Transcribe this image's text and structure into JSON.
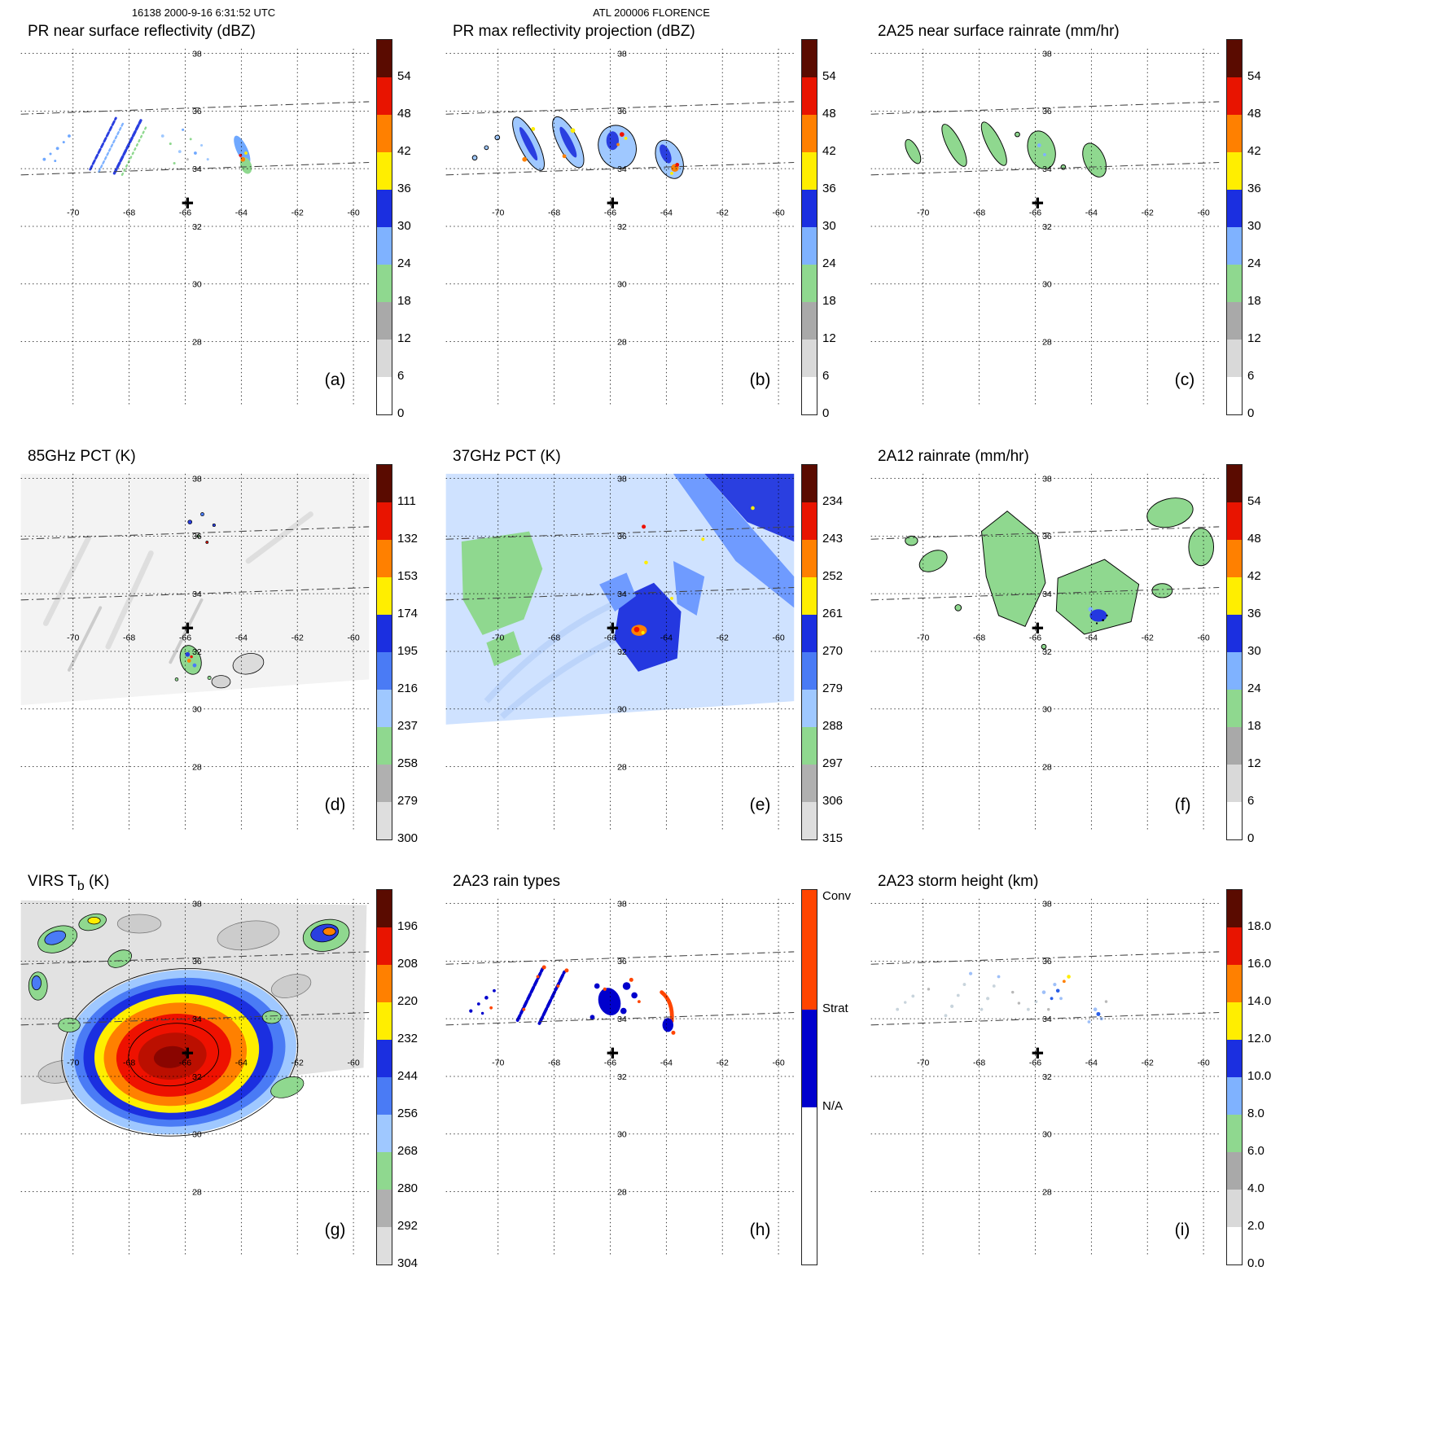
{
  "header": {
    "timestamp": "16138 2000-9-16 6:31:52 UTC",
    "storm_label": "ATL 200006 FLORENCE"
  },
  "axes": {
    "lon_ticks": [
      "-70",
      "-68",
      "-66",
      "-64",
      "-62",
      "-60"
    ],
    "lat_ticks": [
      "38",
      "36",
      "34",
      "32",
      "30",
      "28"
    ]
  },
  "annotations": {
    "storm_marker": {
      "lon": -65.9,
      "lat": 32.9,
      "symbol": "+"
    }
  },
  "panels": {
    "a": {
      "title": "PR near surface reflectivity (dBZ)",
      "letter": "(a)",
      "colorbar": "dbz"
    },
    "b": {
      "title": "PR max reflectivity projection (dBZ)",
      "letter": "(b)",
      "colorbar": "dbz"
    },
    "c": {
      "title": "2A25 near surface rainrate (mm/hr)",
      "letter": "(c)",
      "colorbar": "dbz"
    },
    "d": {
      "title": "85GHz PCT (K)",
      "letter": "(d)",
      "colorbar": "pct85"
    },
    "e": {
      "title": "37GHz PCT (K)",
      "letter": "(e)",
      "colorbar": "pct37"
    },
    "f": {
      "title": "2A12 rainrate (mm/hr)",
      "letter": "(f)",
      "colorbar": "dbz"
    },
    "g": {
      "title": "VIRS T",
      "title_sub": "b",
      "title_suffix": " (K)",
      "letter": "(g)",
      "colorbar": "virs"
    },
    "h": {
      "title": "2A23 rain types",
      "letter": "(h)",
      "colorbar": "raintype"
    },
    "i": {
      "title": "2A23 storm height (km)",
      "letter": "(i)",
      "colorbar": "height"
    }
  },
  "colorbars": {
    "dbz": {
      "cap_color": "#5a0b00",
      "segment_colors_top_down": [
        "#e81400",
        "#ff8000",
        "#ffee00",
        "#1b2fe0",
        "#7fb2ff",
        "#8fd88f",
        "#a9a9a9",
        "#d9d9d9",
        "#ffffff"
      ],
      "ticks_top_down": [
        "54",
        "48",
        "42",
        "36",
        "30",
        "24",
        "18",
        "12",
        "6",
        "0"
      ]
    },
    "pct85": {
      "cap_color": "#5a0b00",
      "segment_colors_top_down": [
        "#e81400",
        "#ff8000",
        "#ffee00",
        "#1b2fe0",
        "#4a7bf5",
        "#9fc8ff",
        "#8fd88f",
        "#b0b0b0",
        "#dedede"
      ],
      "ticks_top_down": [
        "111",
        "132",
        "153",
        "174",
        "195",
        "216",
        "237",
        "258",
        "279",
        "300"
      ]
    },
    "pct37": {
      "cap_color": "#5a0b00",
      "segment_colors_top_down": [
        "#e81400",
        "#ff8000",
        "#ffee00",
        "#1b2fe0",
        "#4a7bf5",
        "#9fc8ff",
        "#8fd88f",
        "#b0b0b0",
        "#dedede"
      ],
      "ticks_top_down": [
        "234",
        "243",
        "252",
        "261",
        "270",
        "279",
        "288",
        "297",
        "306",
        "315"
      ]
    },
    "virs": {
      "cap_color": "#5a0b00",
      "segment_colors_top_down": [
        "#e81400",
        "#ff8000",
        "#ffee00",
        "#1b2fe0",
        "#4a7bf5",
        "#9fc8ff",
        "#8fd88f",
        "#b0b0b0",
        "#dedede"
      ],
      "ticks_top_down": [
        "196",
        "208",
        "220",
        "232",
        "244",
        "256",
        "268",
        "280",
        "292",
        "304"
      ]
    },
    "height": {
      "cap_color": "#5a0b00",
      "segment_colors_top_down": [
        "#e81400",
        "#ff8000",
        "#ffee00",
        "#1b2fe0",
        "#7fb2ff",
        "#8fd88f",
        "#a9a9a9",
        "#d9d9d9",
        "#ffffff"
      ],
      "ticks_top_down": [
        "18.0",
        "16.0",
        "14.0",
        "12.0",
        "10.0",
        "8.0",
        "6.0",
        "4.0",
        "2.0",
        "0.0"
      ]
    },
    "raintype": {
      "type": "categories",
      "segments_top_down": [
        {
          "color": "#ff4500",
          "frac": 0.32,
          "label": "Conv"
        },
        {
          "color": "#0000cd",
          "frac": 0.26,
          "label": "Strat"
        },
        {
          "color": "#ffffff",
          "frac": 0.42,
          "label": "N/A"
        }
      ]
    }
  },
  "chart_data": [
    {
      "panel": "a",
      "type": "heatmap",
      "title": "PR near surface reflectivity (dBZ)",
      "units": "dBZ",
      "x": "longitude",
      "y": "latitude",
      "xlim": [
        -72,
        -59.5
      ],
      "ylim": [
        27,
        38.5
      ],
      "lon_ticks": [
        -70,
        -68,
        -66,
        -64,
        -62,
        -60
      ],
      "lat_ticks": [
        28,
        30,
        32,
        34,
        36,
        38
      ],
      "scale_ticks": [
        0,
        6,
        12,
        18,
        24,
        30,
        36,
        42,
        48,
        54
      ],
      "notes": "Thin NE-SW oriented rainband echoes (mostly 18-36 dBZ, isolated 36-48 dBZ cores) inside the narrow PR swath between ~33.8N and ~36.5N; storm center marker near 65.9W 32.9N"
    },
    {
      "panel": "b",
      "type": "heatmap",
      "title": "PR max reflectivity projection (dBZ)",
      "units": "dBZ",
      "scale_ticks": [
        0,
        6,
        12,
        18,
        24,
        30,
        36,
        42,
        48,
        54
      ],
      "notes": "Same rainbands as (a) with broader 24-30 dBZ black-outlined areas and embedded 36-54 dBZ cores"
    },
    {
      "panel": "c",
      "type": "heatmap",
      "title": "2A25 near surface rainrate (mm/hr)",
      "units": "mm/hr",
      "scale_ticks": [
        0,
        6,
        12,
        18,
        24,
        30,
        36,
        42,
        48,
        54
      ],
      "notes": "Rainband areas mostly light rain (green outlined patches ~0-6 mm/hr) with isolated higher rates"
    },
    {
      "panel": "d",
      "type": "heatmap",
      "title": "85GHz PCT (K)",
      "units": "K",
      "scale_ticks": [
        111,
        132,
        153,
        174,
        195,
        216,
        237,
        258,
        279,
        300
      ],
      "notes": "Wide TMI swath of warm PCT (~280-300 K, light gray); small depressed-PCT cells (237-174 K green/blue with red-orange minima) near 66W 32.5-33.5N; blue specks near 37-38N"
    },
    {
      "panel": "e",
      "type": "heatmap",
      "title": "37GHz PCT (K)",
      "units": "K",
      "scale_ticks": [
        234,
        243,
        252,
        261,
        270,
        279,
        288,
        297,
        306,
        315
      ],
      "notes": "Swath mostly 279-288 K (pale blue); green 288-297 K region on west side; 261-270 K dark blue area near 65W 32-33.5N with small 234-252 K red/orange/yellow core near 65.5W 32.7N; dark blue band in NE corner"
    },
    {
      "panel": "f",
      "type": "heatmap",
      "title": "2A12 rainrate (mm/hr)",
      "units": "mm/hr",
      "scale_ticks": [
        0,
        6,
        12,
        18,
        24,
        30,
        36,
        42,
        48,
        54
      ],
      "notes": "Broad light-rain (green, 0-6 mm/hr) regions across 33-38N; embedded 18-30 mm/hr blue patch near 64.5W 32.5N"
    },
    {
      "panel": "g",
      "type": "heatmap",
      "title": "VIRS Tb (K)",
      "units": "K",
      "scale_ticks": [
        196,
        208,
        220,
        232,
        244,
        256,
        268,
        280,
        292,
        304
      ],
      "notes": "IR image: large circular cold cloud shield of Florence centered near 66W 32.3N, core Tb < 208 K (dark red) ringed by orange, yellow and blue; warmer gray cloud fields and frontal debris to the north and northeast"
    },
    {
      "panel": "h",
      "type": "categorical-map",
      "title": "2A23 rain types",
      "categories": [
        "Conv",
        "Strat",
        "N/A"
      ],
      "notes": "Rainbands mostly stratiform (blue) with scattered convective (orange-red) pixels; convective arc on the eastern band"
    },
    {
      "panel": "i",
      "type": "heatmap",
      "title": "2A23 storm height (km)",
      "units": "km",
      "scale_ticks": [
        0,
        2,
        4,
        6,
        8,
        10,
        12,
        14,
        16,
        18
      ],
      "notes": "Storm heights mostly 2-8 km (gray/pale blue speckle) along the rainbands, isolated 8-12 km blue and ~12-14 km yellow tops near 64-65W"
    }
  ]
}
